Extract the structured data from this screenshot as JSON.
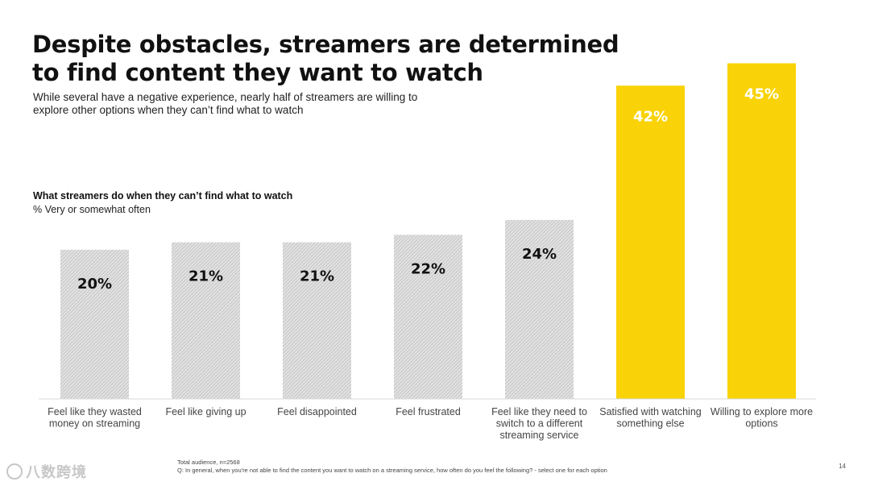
{
  "slide": {
    "title": "Despite obstacles, streamers are determined to find content they want to watch",
    "subtitle": "While several have a negative experience, nearly half of streamers are willing to explore other options when they can’t find what to watch",
    "footnote_line1": "Total audience, n=2568",
    "footnote_line2": "Q: In general, when you're not able to find the content you want to watch on a streaming service, how often do you feel the following? - select one for each option",
    "page_number": "14",
    "watermark_text": "八数跨境"
  },
  "colors": {
    "hatched_fill": "#e2e2e2",
    "hatch_line": "#b9b9b9",
    "highlight": "#f9d307",
    "baseline": "#d9d9d9",
    "label_dark": "#111111",
    "label_on_highlight": "#ffffff"
  },
  "chart_data": {
    "type": "bar",
    "title": "What streamers do when they can’t find what to watch",
    "unit_label": "% Very or somewhat often",
    "categories": [
      [
        "Feel like they wasted",
        "money on streaming"
      ],
      [
        "Feel like giving up"
      ],
      [
        "Feel disappointed"
      ],
      [
        "Feel frustrated"
      ],
      [
        "Feel like they need to",
        "switch to a different",
        "streaming service"
      ],
      [
        "Satisfied with watching",
        "something else"
      ],
      [
        "Willing to explore more",
        "options"
      ]
    ],
    "values": [
      20,
      21,
      21,
      22,
      24,
      42,
      45
    ],
    "value_labels": [
      "20%",
      "21%",
      "21%",
      "22%",
      "24%",
      "42%",
      "45%"
    ],
    "styles": [
      "hatched",
      "hatched",
      "hatched",
      "hatched",
      "hatched",
      "highlight",
      "highlight"
    ],
    "ylim": [
      0,
      47
    ],
    "grid": false,
    "legend": false
  }
}
